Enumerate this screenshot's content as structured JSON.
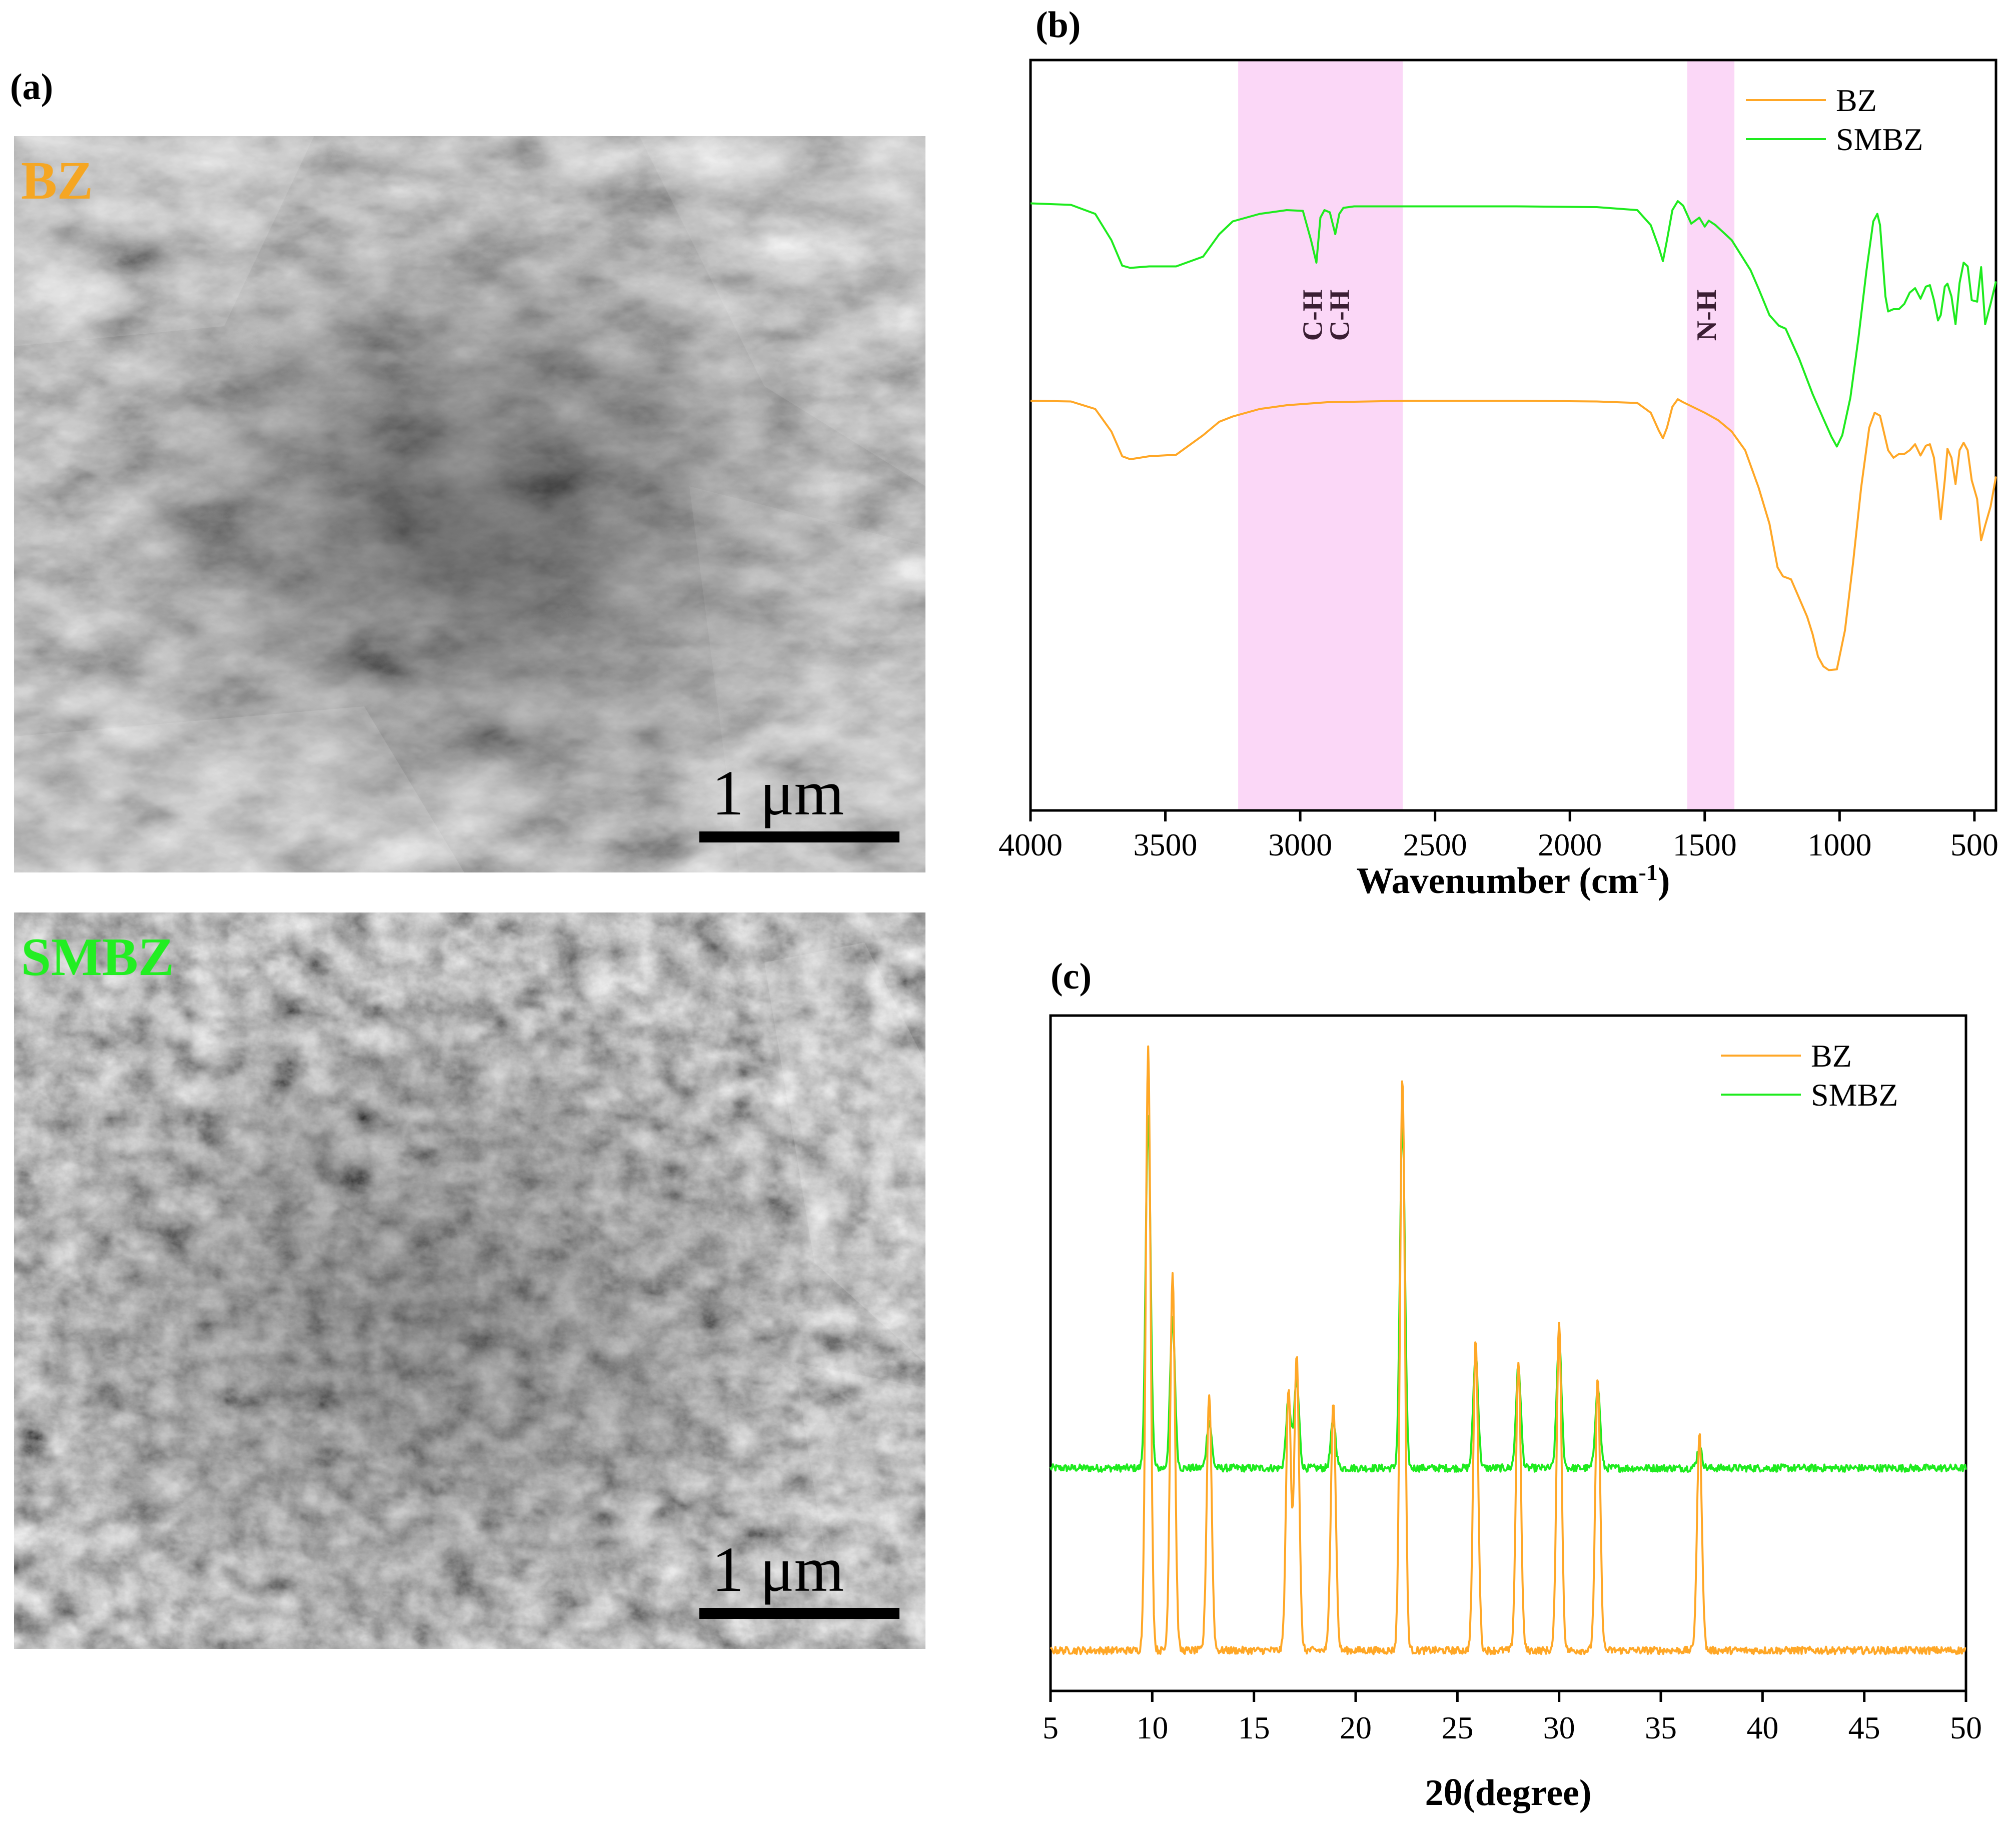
{
  "panels": {
    "a": "(a)",
    "b": "(b)",
    "c": "(c)"
  },
  "sem": {
    "top": {
      "label": "BZ",
      "scale_bar": "1 μm",
      "label_color": "#F5A623"
    },
    "bottom": {
      "label": "SMBZ",
      "scale_bar": "1 μm",
      "label_color": "#22EE22"
    }
  },
  "colors": {
    "BZ": "#FFA726",
    "SMBZ": "#1EEB1E",
    "highlight": "#FBD7F7"
  },
  "chart_data": [
    {
      "type": "line",
      "panel": "(b)",
      "title": "",
      "xlabel_main": "Wavenumber (cm",
      "xlabel_sup": "-1",
      "xlabel_end": ")",
      "ylabel": "",
      "xlim": [
        4000,
        420
      ],
      "x_reversed": true,
      "xticks": [
        4000,
        3500,
        3000,
        2500,
        2000,
        1500,
        1000,
        500
      ],
      "ylim": [
        0,
        100
      ],
      "legend_position": "top-right",
      "highlight_bands": [
        [
          3230,
          2620
        ],
        [
          1565,
          1390
        ]
      ],
      "annotations": [
        {
          "text": "C-H",
          "x": 2960
        },
        {
          "text": "C-H",
          "x": 2860
        },
        {
          "text": "N-H",
          "x": 1500
        }
      ],
      "series": [
        {
          "name": "SMBZ",
          "x": [
            4000,
            3850,
            3760,
            3700,
            3660,
            3630,
            3560,
            3460,
            3360,
            3300,
            3250,
            3150,
            3050,
            2990,
            2960,
            2940,
            2925,
            2910,
            2890,
            2870,
            2855,
            2840,
            2800,
            2600,
            2200,
            1900,
            1750,
            1700,
            1670,
            1655,
            1640,
            1620,
            1600,
            1580,
            1550,
            1520,
            1500,
            1485,
            1460,
            1400,
            1330,
            1300,
            1260,
            1225,
            1200,
            1150,
            1100,
            1060,
            1030,
            1010,
            990,
            960,
            930,
            900,
            875,
            860,
            850,
            830,
            820,
            800,
            780,
            760,
            740,
            720,
            700,
            680,
            665,
            650,
            635,
            625,
            610,
            600,
            585,
            570,
            555,
            540,
            525,
            510,
            490,
            475,
            460,
            440,
            420
          ],
          "y": [
            80.9,
            80.7,
            79.5,
            76,
            72.6,
            72.3,
            72.5,
            72.5,
            73.8,
            76.8,
            78.5,
            79.5,
            80,
            79.9,
            76,
            73,
            79,
            80,
            79.7,
            76.8,
            79.5,
            80.3,
            80.5,
            80.5,
            80.5,
            80.4,
            80,
            78,
            75,
            73.2,
            76,
            80,
            81.2,
            80.6,
            78.2,
            79,
            77.8,
            78.6,
            78,
            76,
            72,
            69.5,
            66,
            64.6,
            64.2,
            60.2,
            55.5,
            52.2,
            49.8,
            48.5,
            50,
            55,
            63,
            72,
            78.5,
            79.5,
            78,
            68.5,
            66.5,
            66.8,
            66.8,
            67.5,
            69,
            69.6,
            68.2,
            69.8,
            70,
            68,
            65.3,
            66,
            69.8,
            70.2,
            68.5,
            64.8,
            70.3,
            73,
            72.5,
            68,
            67.8,
            72.4,
            64.8,
            67.5,
            70.5
          ]
        },
        {
          "name": "BZ",
          "x": [
            4000,
            3850,
            3760,
            3700,
            3660,
            3630,
            3560,
            3460,
            3360,
            3300,
            3250,
            3150,
            3050,
            2900,
            2600,
            2200,
            1900,
            1750,
            1700,
            1670,
            1655,
            1640,
            1620,
            1600,
            1580,
            1500,
            1450,
            1400,
            1350,
            1300,
            1260,
            1230,
            1210,
            1180,
            1150,
            1120,
            1100,
            1080,
            1060,
            1040,
            1010,
            980,
            950,
            920,
            890,
            870,
            850,
            820,
            800,
            780,
            760,
            740,
            720,
            700,
            680,
            665,
            650,
            635,
            625,
            610,
            600,
            585,
            570,
            555,
            540,
            525,
            510,
            490,
            475,
            460,
            440,
            420
          ],
          "y": [
            54.6,
            54.5,
            53.5,
            50.5,
            47.2,
            46.8,
            47.2,
            47.4,
            50,
            51.8,
            52.5,
            53.5,
            54,
            54.4,
            54.6,
            54.6,
            54.5,
            54.3,
            53,
            50.6,
            49.6,
            51,
            53.8,
            54.8,
            54.4,
            53,
            52,
            50.5,
            48,
            43,
            38.2,
            32.4,
            31.2,
            30.8,
            28.3,
            25.8,
            23.5,
            20.5,
            19.2,
            18.7,
            18.8,
            24,
            33,
            43,
            51,
            53,
            52.6,
            48,
            47,
            47.5,
            47.5,
            48,
            48.8,
            47.3,
            48.6,
            48.8,
            47,
            42.4,
            38.8,
            44,
            48.2,
            47,
            43.5,
            48,
            49,
            48,
            44,
            41.5,
            36,
            38,
            40.5,
            44.5
          ]
        }
      ]
    },
    {
      "type": "line",
      "panel": "(c)",
      "title": "",
      "xlabel": "2θ(degree)",
      "ylabel": "",
      "xlim": [
        5,
        50
      ],
      "xticks": [
        5,
        10,
        15,
        20,
        25,
        30,
        35,
        40,
        45,
        50
      ],
      "ylim": [
        0,
        100
      ],
      "legend_position": "top-right",
      "peaks": [
        {
          "x": 9.8,
          "SMBZ": 85,
          "BZ": 95
        },
        {
          "x": 11.0,
          "SMBZ": 55,
          "BZ": 62
        },
        {
          "x": 12.8,
          "SMBZ": 40,
          "BZ": 44
        },
        {
          "x": 16.7,
          "SMBZ": 43,
          "BZ": 45
        },
        {
          "x": 17.1,
          "SMBZ": 46,
          "BZ": 50
        },
        {
          "x": 18.9,
          "SMBZ": 40,
          "BZ": 43
        },
        {
          "x": 22.3,
          "SMBZ": 85,
          "BZ": 91
        },
        {
          "x": 25.9,
          "SMBZ": 50,
          "BZ": 52
        },
        {
          "x": 28.0,
          "SMBZ": 48,
          "BZ": 49
        },
        {
          "x": 30.0,
          "SMBZ": 52,
          "BZ": 55
        },
        {
          "x": 31.9,
          "SMBZ": 45,
          "BZ": 46
        },
        {
          "x": 36.9,
          "SMBZ": 36,
          "BZ": 38
        }
      ],
      "baseline": {
        "SMBZ": 33,
        "BZ": 6
      },
      "series": [
        {
          "name": "BZ"
        },
        {
          "name": "SMBZ"
        }
      ]
    }
  ]
}
